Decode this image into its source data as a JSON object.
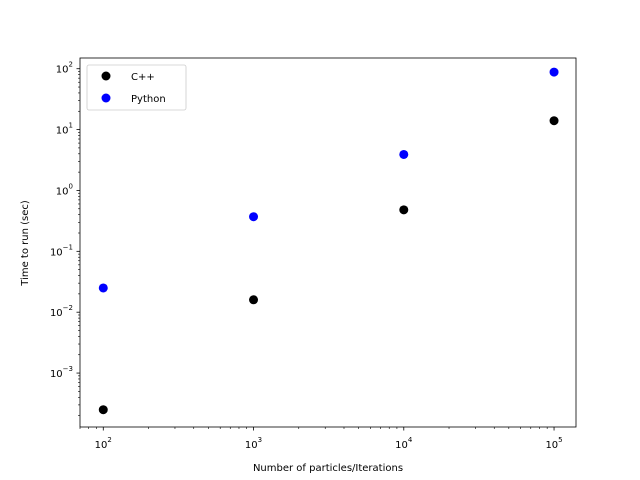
{
  "chart_data": {
    "type": "scatter",
    "title": "",
    "xlabel": "Number of particles/Iterations",
    "ylabel": "Time to run (sec)",
    "xscale": "log",
    "yscale": "log",
    "xlim": [
      70,
      140000
    ],
    "ylim": [
      0.00013,
      150
    ],
    "x_ticks": [
      {
        "value": 100,
        "base": "10",
        "exp": "2"
      },
      {
        "value": 1000,
        "base": "10",
        "exp": "3"
      },
      {
        "value": 10000,
        "base": "10",
        "exp": "4"
      },
      {
        "value": 100000,
        "base": "10",
        "exp": "5"
      }
    ],
    "y_ticks": [
      {
        "value": 0.001,
        "base": "10",
        "exp": "−3"
      },
      {
        "value": 0.01,
        "base": "10",
        "exp": "−2"
      },
      {
        "value": 0.1,
        "base": "10",
        "exp": "−1"
      },
      {
        "value": 1,
        "base": "10",
        "exp": "0"
      },
      {
        "value": 10,
        "base": "10",
        "exp": "1"
      },
      {
        "value": 100,
        "base": "10",
        "exp": "2"
      }
    ],
    "grid": false,
    "legend_position": "top-left",
    "series": [
      {
        "name": "C++",
        "color": "#000000",
        "x": [
          100,
          1000,
          10000,
          100000
        ],
        "y": [
          0.00025,
          0.016,
          0.48,
          14
        ]
      },
      {
        "name": "Python",
        "color": "#0000ff",
        "x": [
          100,
          1000,
          10000,
          100000
        ],
        "y": [
          0.025,
          0.37,
          3.9,
          88
        ]
      }
    ]
  }
}
